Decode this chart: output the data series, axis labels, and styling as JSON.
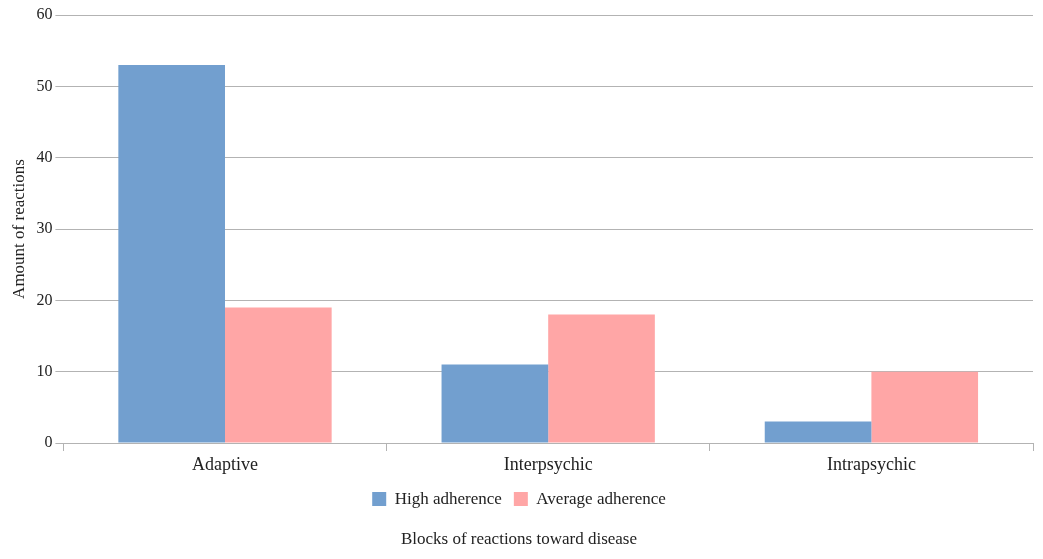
{
  "chart_data": {
    "type": "bar",
    "xlabel": "Blocks of reactions toward disease",
    "ylabel": "Amount of reactions",
    "categories": [
      "Adaptive",
      "Interpsychic",
      "Intrapsychic"
    ],
    "series": [
      {
        "name": "High adherence",
        "color": "#729fcf",
        "values": [
          53,
          11,
          3
        ]
      },
      {
        "name": "Average adherence",
        "color": "#ffa6a6",
        "values": [
          19,
          18,
          10
        ]
      }
    ],
    "ylim": [
      0,
      60
    ],
    "yticks": [
      0,
      10,
      20,
      30,
      40,
      50,
      60
    ],
    "grid": "y",
    "legend": "bottom"
  }
}
